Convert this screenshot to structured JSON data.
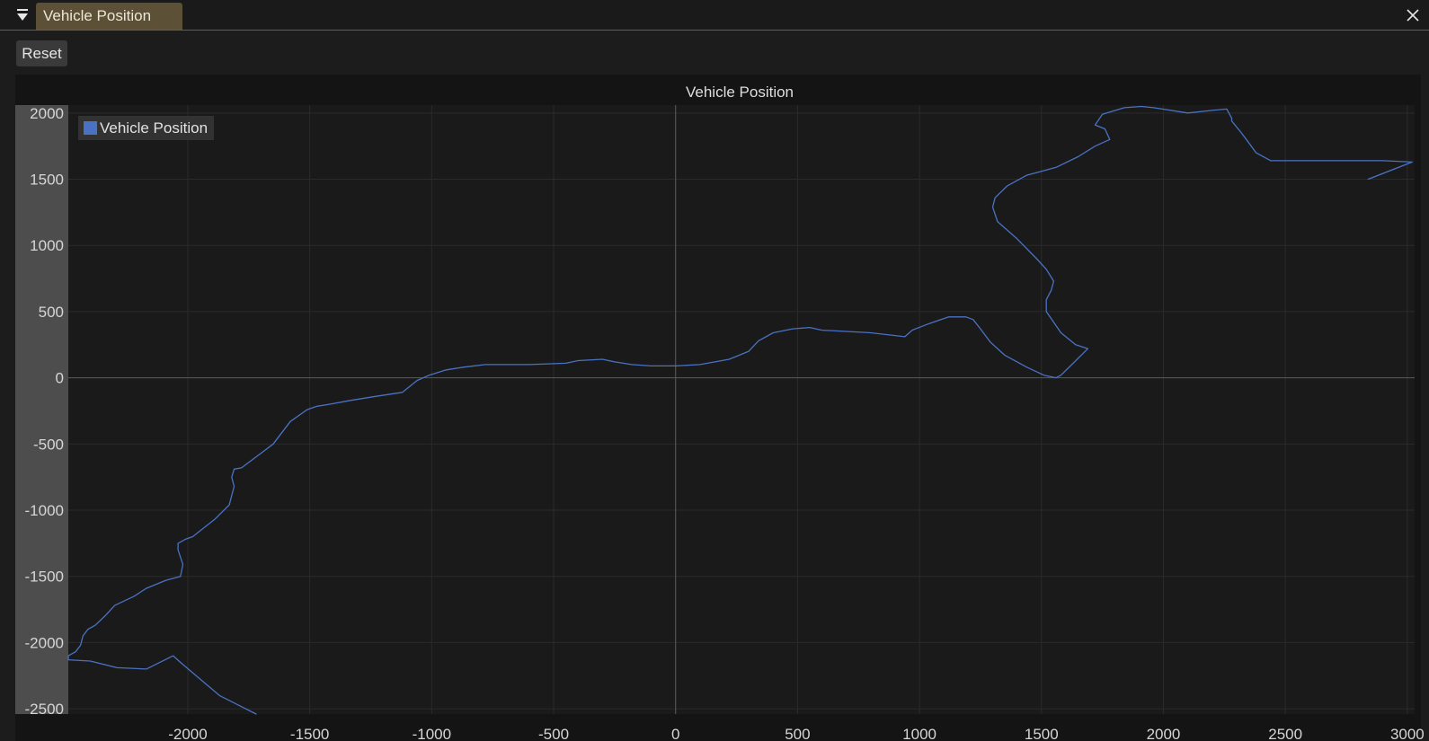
{
  "window": {
    "tab_title": "Vehicle Position",
    "menu_icon": "triangle-menu-icon",
    "close_icon": "close-icon"
  },
  "toolbar": {
    "reset_label": "Reset"
  },
  "colors": {
    "series": "#4a72c4",
    "tab_background": "#5c5036",
    "plot_background": "#1a1a1a",
    "y_axis_band": "#4d4d4d"
  },
  "chart_data": {
    "type": "line",
    "title": "Vehicle Position",
    "xlabel": "",
    "ylabel": "",
    "xlim": [
      -2490,
      3030
    ],
    "ylim": [
      -2540,
      2060
    ],
    "x_ticks": [
      -2000,
      -1500,
      -1000,
      -500,
      0,
      500,
      1000,
      1500,
      2000,
      2500,
      3000
    ],
    "x_tick_labels": [
      "-2000",
      "-1500",
      "-1000",
      "-500",
      "0",
      "500",
      "1000",
      "1500",
      "2000",
      "2500",
      "3000"
    ],
    "y_ticks": [
      2000,
      1500,
      1000,
      500,
      0,
      -500,
      -1000,
      -1500,
      -2000,
      -2500
    ],
    "y_tick_labels": [
      "2000",
      "1500",
      "1000",
      "500",
      "0",
      "-500",
      "-1000",
      "-1500",
      "-2000",
      "-2500"
    ],
    "grid": true,
    "legend": {
      "position": "top-left",
      "entries": [
        "Vehicle Position"
      ]
    },
    "series": [
      {
        "name": "Vehicle Position",
        "x": [
          -1720,
          -1870,
          -2030,
          -2060,
          -2170,
          -2290,
          -2400,
          -2490,
          -2490,
          -2460,
          -2440,
          -2430,
          -2410,
          -2380,
          -2340,
          -2300,
          -2220,
          -2170,
          -2090,
          -2030,
          -2020,
          -2040,
          -2040,
          -2010,
          -1980,
          -1890,
          -1830,
          -1810,
          -1820,
          -1810,
          -1780,
          -1700,
          -1650,
          -1580,
          -1510,
          -1470,
          -1420,
          -1330,
          -1230,
          -1120,
          -1060,
          -1010,
          -940,
          -870,
          -780,
          -720,
          -600,
          -450,
          -400,
          -300,
          -250,
          -180,
          -100,
          0,
          100,
          220,
          300,
          340,
          400,
          480,
          550,
          600,
          700,
          800,
          940,
          970,
          1040,
          1120,
          1190,
          1220,
          1250,
          1290,
          1350,
          1440,
          1510,
          1560,
          1580,
          1630,
          1690,
          1640,
          1580,
          1520,
          1520,
          1540,
          1550,
          1520,
          1480,
          1400,
          1320,
          1300,
          1310,
          1360,
          1440,
          1500,
          1560,
          1650,
          1720,
          1780,
          1760,
          1720,
          1750,
          1840,
          1910,
          1960,
          2100,
          2200,
          2260,
          2280,
          2280,
          2320,
          2340,
          2380,
          2440,
          2700,
          2900,
          3020,
          2840
        ],
        "y": [
          -2540,
          -2400,
          -2150,
          -2100,
          -2200,
          -2190,
          -2140,
          -2130,
          -2100,
          -2070,
          -2020,
          -1950,
          -1900,
          -1870,
          -1800,
          -1720,
          -1650,
          -1590,
          -1530,
          -1500,
          -1410,
          -1300,
          -1250,
          -1220,
          -1200,
          -1070,
          -960,
          -820,
          -750,
          -690,
          -680,
          -570,
          -500,
          -330,
          -240,
          -215,
          -200,
          -170,
          -140,
          -110,
          -20,
          20,
          60,
          80,
          100,
          100,
          100,
          110,
          130,
          140,
          120,
          100,
          90,
          90,
          100,
          140,
          200,
          280,
          340,
          370,
          380,
          360,
          350,
          340,
          310,
          360,
          410,
          460,
          460,
          440,
          370,
          270,
          170,
          80,
          20,
          0,
          20,
          110,
          220,
          250,
          340,
          500,
          590,
          660,
          730,
          820,
          900,
          1050,
          1180,
          1290,
          1360,
          1450,
          1530,
          1560,
          1590,
          1670,
          1750,
          1800,
          1880,
          1910,
          1990,
          2040,
          2050,
          2040,
          2000,
          2020,
          2030,
          1960,
          1940,
          1850,
          1800,
          1700,
          1640,
          1640,
          1640,
          1630,
          1500
        ]
      }
    ]
  }
}
